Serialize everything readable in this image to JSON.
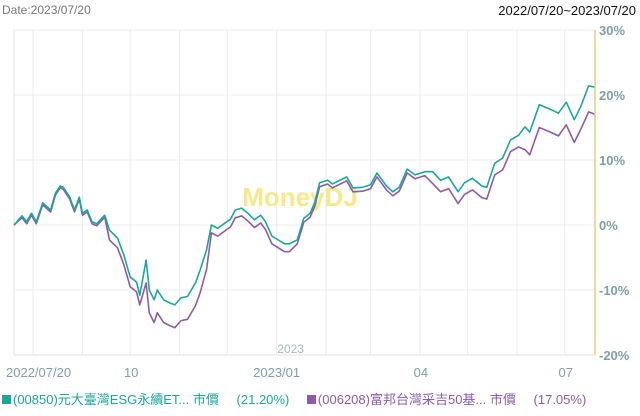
{
  "header": {
    "date_label": "Date:2023/07/20",
    "range_label": "2022/07/20~2023/07/20"
  },
  "watermark": "MoneyDJ",
  "colors": {
    "series1": "#1ba69c",
    "series2": "#8d5ba8",
    "axis_text": "#7e9ea6",
    "right_axis": "#e6cf72",
    "grid": "#ececec",
    "watermark": "#f7e98a"
  },
  "legend": [
    {
      "code": "(00850)元大臺灣ESG永續ET...",
      "field": "市價",
      "return": "(21.20%)"
    },
    {
      "code": "(006208)富邦台灣采吉50基...",
      "field": "市價",
      "return": "(17.05%)"
    }
  ],
  "chart_data": {
    "type": "line",
    "title": "",
    "xlim": [
      "2022-07-20",
      "2023-07-20"
    ],
    "ylim": [
      -20,
      30
    ],
    "y_ticks": [
      "30%",
      "20%",
      "10%",
      "0%",
      "-10%",
      "-20%"
    ],
    "y_tick_values": [
      30,
      20,
      10,
      0,
      -10,
      -20
    ],
    "y_axis_position": "right",
    "x_ticks": [
      {
        "date": "2022-07-20",
        "label": "2022/07/20"
      },
      {
        "date": "2022-10-01",
        "label": "10"
      },
      {
        "date": "2023-01-01",
        "label": "2023/01"
      },
      {
        "date": "2023-04-01",
        "label": "04"
      },
      {
        "date": "2023-07-01",
        "label": "07"
      }
    ],
    "year_marker": {
      "date": "2023-01-01",
      "label": "2023"
    },
    "grid": true,
    "legend_placement": "bottom",
    "x": [
      "2022-07-20",
      "2022-07-25",
      "2022-07-28",
      "2022-07-31",
      "2022-08-03",
      "2022-08-07",
      "2022-08-12",
      "2022-08-15",
      "2022-08-18",
      "2022-08-20",
      "2022-08-24",
      "2022-08-27",
      "2022-08-30",
      "2022-09-01",
      "2022-09-04",
      "2022-09-07",
      "2022-09-10",
      "2022-09-15",
      "2022-09-18",
      "2022-09-23",
      "2022-09-27",
      "2022-10-01",
      "2022-10-05",
      "2022-10-07",
      "2022-10-11",
      "2022-10-13",
      "2022-10-16",
      "2022-10-18",
      "2022-10-22",
      "2022-10-26",
      "2022-10-29",
      "2022-11-02",
      "2022-11-06",
      "2022-11-11",
      "2022-11-14",
      "2022-11-18",
      "2022-11-21",
      "2022-11-25",
      "2022-11-29",
      "2022-12-03",
      "2022-12-06",
      "2022-12-10",
      "2022-12-14",
      "2022-12-18",
      "2022-12-22",
      "2022-12-25",
      "2022-12-29",
      "2023-01-02",
      "2023-01-06",
      "2023-01-09",
      "2023-01-14",
      "2023-01-18",
      "2023-01-22",
      "2023-01-25",
      "2023-01-28",
      "2023-02-02",
      "2023-02-05",
      "2023-02-14",
      "2023-02-18",
      "2023-02-24",
      "2023-03-01",
      "2023-03-05",
      "2023-03-11",
      "2023-03-15",
      "2023-03-19",
      "2023-03-24",
      "2023-03-29",
      "2023-04-04",
      "2023-04-09",
      "2023-04-14",
      "2023-04-19",
      "2023-04-25",
      "2023-04-29",
      "2023-05-04",
      "2023-05-10",
      "2023-05-13",
      "2023-05-18",
      "2023-05-23",
      "2023-05-28",
      "2023-06-02",
      "2023-06-06",
      "2023-06-09",
      "2023-06-15",
      "2023-06-22",
      "2023-06-27",
      "2023-07-02",
      "2023-07-07",
      "2023-07-11",
      "2023-07-16",
      "2023-07-20"
    ],
    "series": [
      {
        "name": "(00850)元大臺灣ESG永續ET... 市價",
        "values": [
          0,
          1.4,
          0.5,
          1.8,
          0.5,
          3.4,
          2.3,
          4.9,
          6.0,
          5.8,
          4.3,
          2.3,
          4.3,
          1.8,
          2.3,
          0.5,
          0.2,
          1.5,
          -0.8,
          -2.0,
          -4.6,
          -8.0,
          -8.8,
          -10.8,
          -5.4,
          -10.0,
          -11.5,
          -10.0,
          -11.5,
          -12.0,
          -12.3,
          -11.2,
          -11.0,
          -8.9,
          -6.9,
          -3.8,
          0.0,
          -0.5,
          0.2,
          0.9,
          2.3,
          2.6,
          1.8,
          0.8,
          1.5,
          0.5,
          -1.7,
          -2.3,
          -2.9,
          -2.9,
          -2.3,
          1.0,
          1.8,
          3.5,
          6.5,
          6.9,
          6.3,
          7.4,
          5.7,
          5.8,
          6.2,
          8.0,
          6.0,
          5.1,
          5.8,
          8.6,
          7.7,
          8.2,
          8.2,
          6.9,
          7.4,
          5.1,
          6.5,
          7.2,
          6.0,
          5.8,
          9.5,
          10.3,
          13.1,
          13.8,
          15.1,
          14.3,
          18.5,
          17.8,
          17.2,
          18.9,
          16.2,
          18.2,
          21.4,
          21.2
        ]
      },
      {
        "name": "(006208)富邦台灣采吉50基... 市價",
        "values": [
          0,
          1.1,
          0.2,
          1.5,
          0.2,
          3.1,
          2.0,
          4.6,
          5.7,
          5.5,
          4.0,
          2.0,
          4.0,
          1.5,
          2.0,
          0.2,
          -0.1,
          1.2,
          -2.3,
          -3.5,
          -6.1,
          -9.5,
          -10.3,
          -12.3,
          -8.9,
          -13.5,
          -15.0,
          -13.5,
          -15.0,
          -15.5,
          -15.8,
          -14.7,
          -14.5,
          -12.4,
          -10.4,
          -6.8,
          -1.2,
          -1.7,
          -1.0,
          -0.3,
          1.1,
          1.4,
          0.6,
          -0.4,
          0.3,
          -0.7,
          -2.9,
          -3.5,
          -4.1,
          -4.1,
          -2.9,
          0.4,
          1.2,
          2.9,
          5.9,
          6.3,
          5.7,
          6.8,
          5.1,
          5.2,
          5.6,
          7.4,
          5.4,
          4.5,
          5.2,
          8.0,
          7.1,
          7.6,
          6.4,
          5.1,
          5.6,
          3.3,
          4.7,
          5.4,
          4.2,
          4.0,
          7.7,
          8.5,
          11.3,
          12.0,
          11.6,
          10.8,
          15.0,
          14.3,
          13.7,
          15.4,
          12.7,
          14.7,
          17.4,
          17.05
        ]
      }
    ]
  }
}
